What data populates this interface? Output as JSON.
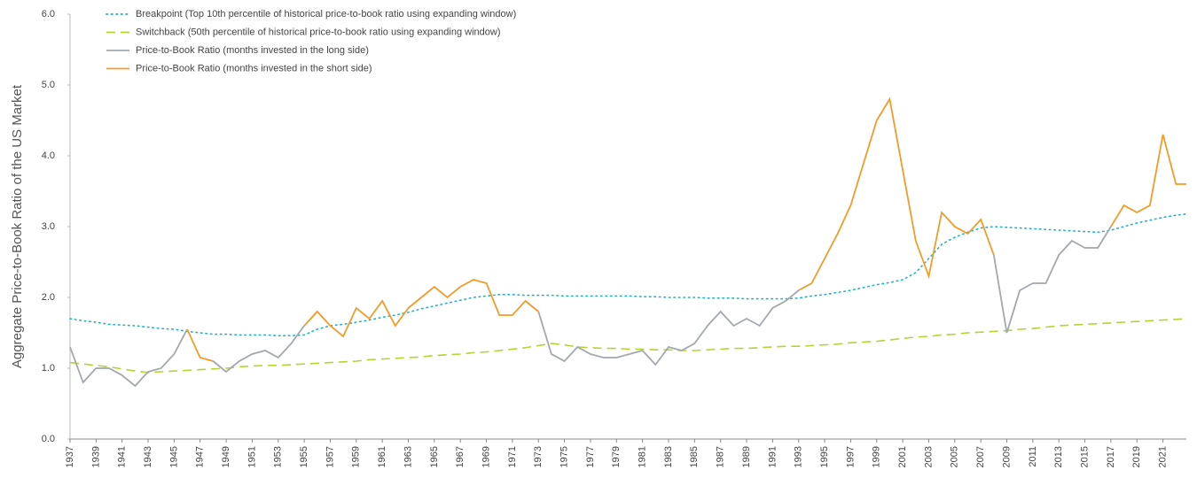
{
  "chart_data": {
    "type": "line",
    "y_label": "Aggregate Price-to-Book Ratio of the US Market",
    "x": [
      1937,
      1938,
      1939,
      1940,
      1941,
      1942,
      1943,
      1944,
      1945,
      1946,
      1947,
      1948,
      1949,
      1950,
      1951,
      1952,
      1953,
      1954,
      1955,
      1956,
      1957,
      1958,
      1959,
      1960,
      1961,
      1962,
      1963,
      1964,
      1965,
      1966,
      1967,
      1968,
      1969,
      1970,
      1971,
      1972,
      1973,
      1974,
      1975,
      1976,
      1977,
      1978,
      1979,
      1980,
      1981,
      1982,
      1983,
      1984,
      1985,
      1986,
      1987,
      1988,
      1989,
      1990,
      1991,
      1992,
      1993,
      1994,
      1995,
      1996,
      1997,
      1998,
      1999,
      2000,
      2001,
      2002,
      2003,
      2004,
      2005,
      2006,
      2007,
      2008,
      2009,
      2010,
      2011,
      2012,
      2013,
      2014,
      2015,
      2016,
      2017,
      2018,
      2019,
      2020,
      2021,
      2022,
      2022.8
    ],
    "series": [
      {
        "name": "Breakpoint (Top 10th percentile of historical price-to-book ratio using expanding window)",
        "color": "#1fb3c4",
        "dash": "dotted",
        "values": [
          1.7,
          1.67,
          1.65,
          1.62,
          1.61,
          1.6,
          1.58,
          1.56,
          1.55,
          1.52,
          1.5,
          1.48,
          1.48,
          1.47,
          1.47,
          1.47,
          1.46,
          1.46,
          1.47,
          1.55,
          1.6,
          1.62,
          1.65,
          1.68,
          1.72,
          1.75,
          1.79,
          1.84,
          1.88,
          1.92,
          1.96,
          2.0,
          2.02,
          2.04,
          2.04,
          2.03,
          2.03,
          2.03,
          2.02,
          2.02,
          2.02,
          2.02,
          2.02,
          2.02,
          2.01,
          2.01,
          2.0,
          2.0,
          2.0,
          1.99,
          1.99,
          1.99,
          1.98,
          1.98,
          1.98,
          1.98,
          1.99,
          2.02,
          2.04,
          2.07,
          2.1,
          2.14,
          2.18,
          2.21,
          2.25,
          2.35,
          2.55,
          2.75,
          2.85,
          2.92,
          2.98,
          3.0,
          2.99,
          2.98,
          2.97,
          2.96,
          2.95,
          2.94,
          2.93,
          2.92,
          2.95,
          3.0,
          3.05,
          3.09,
          3.13,
          3.16,
          3.18
        ]
      },
      {
        "name": "Switchback (50th percentile of historical price-to-book ratio using expanding window)",
        "color": "#b5d334",
        "dash": "dashed",
        "values": [
          1.08,
          1.06,
          1.04,
          1.02,
          0.99,
          0.96,
          0.94,
          0.95,
          0.96,
          0.97,
          0.98,
          0.99,
          1.0,
          1.02,
          1.03,
          1.04,
          1.04,
          1.05,
          1.06,
          1.07,
          1.08,
          1.09,
          1.1,
          1.12,
          1.13,
          1.14,
          1.15,
          1.16,
          1.18,
          1.19,
          1.2,
          1.22,
          1.23,
          1.25,
          1.27,
          1.29,
          1.32,
          1.35,
          1.33,
          1.3,
          1.29,
          1.28,
          1.28,
          1.27,
          1.27,
          1.26,
          1.26,
          1.25,
          1.25,
          1.26,
          1.27,
          1.28,
          1.28,
          1.29,
          1.3,
          1.31,
          1.31,
          1.32,
          1.33,
          1.34,
          1.36,
          1.37,
          1.38,
          1.4,
          1.42,
          1.44,
          1.45,
          1.47,
          1.48,
          1.5,
          1.51,
          1.52,
          1.53,
          1.55,
          1.56,
          1.58,
          1.6,
          1.61,
          1.62,
          1.63,
          1.64,
          1.65,
          1.66,
          1.67,
          1.68,
          1.69,
          1.7
        ]
      },
      {
        "name": "Price-to-Book Ratio (months invested in the long side)",
        "color": "#a2a8ae",
        "dash": "solid",
        "values": [
          1.3,
          0.8,
          1.0,
          1.0,
          0.9,
          0.75,
          0.95,
          1.0,
          1.2,
          1.55,
          null,
          1.1,
          0.95,
          1.1,
          1.2,
          1.25,
          1.15,
          1.35,
          1.6,
          null,
          null,
          null,
          null,
          null,
          null,
          null,
          null,
          null,
          null,
          null,
          null,
          null,
          null,
          null,
          null,
          null,
          1.8,
          1.2,
          1.1,
          1.3,
          1.2,
          1.15,
          1.15,
          1.2,
          1.25,
          1.05,
          1.3,
          1.25,
          1.35,
          1.6,
          1.8,
          1.6,
          1.7,
          1.6,
          1.85,
          1.95,
          2.1,
          null,
          null,
          null,
          null,
          null,
          null,
          null,
          null,
          null,
          null,
          null,
          null,
          null,
          null,
          2.6,
          1.5,
          2.1,
          2.2,
          2.2,
          2.6,
          2.8,
          2.7,
          2.7,
          3.0,
          null,
          null,
          null,
          null,
          null,
          null
        ]
      },
      {
        "name": "Price-to-Book Ratio (months invested in the short side)",
        "color": "#f29b26",
        "dash": "solid",
        "values": [
          null,
          null,
          null,
          null,
          null,
          null,
          null,
          null,
          null,
          1.55,
          1.15,
          1.1,
          null,
          null,
          null,
          null,
          null,
          null,
          1.6,
          1.8,
          1.6,
          1.45,
          1.85,
          1.7,
          1.95,
          1.6,
          1.85,
          2.0,
          2.15,
          2.0,
          2.15,
          2.25,
          2.2,
          1.75,
          1.75,
          1.95,
          1.8,
          null,
          null,
          null,
          null,
          null,
          null,
          null,
          null,
          null,
          null,
          null,
          null,
          null,
          null,
          null,
          null,
          null,
          null,
          null,
          2.1,
          2.2,
          2.55,
          2.9,
          3.3,
          3.9,
          4.5,
          4.8,
          3.8,
          2.8,
          2.3,
          3.2,
          3.0,
          2.9,
          3.1,
          2.6,
          null,
          null,
          null,
          null,
          null,
          null,
          null,
          null,
          3.0,
          3.3,
          3.2,
          3.3,
          4.3,
          3.6,
          3.6
        ]
      }
    ],
    "xlim": [
      1937,
      2022.8
    ],
    "xticks": [
      1937,
      1939,
      1941,
      1943,
      1945,
      1947,
      1949,
      1951,
      1953,
      1955,
      1957,
      1959,
      1961,
      1963,
      1965,
      1967,
      1969,
      1971,
      1973,
      1975,
      1977,
      1979,
      1981,
      1983,
      1985,
      1987,
      1989,
      1991,
      1993,
      1995,
      1997,
      1999,
      2001,
      2003,
      2005,
      2007,
      2009,
      2011,
      2013,
      2015,
      2017,
      2019,
      2021
    ],
    "ylim": [
      0,
      6
    ],
    "yticks": [
      {
        "value": 0,
        "label": "0.0"
      },
      {
        "value": 1,
        "label": "1.0"
      },
      {
        "value": 2,
        "label": "2.0"
      },
      {
        "value": 3,
        "label": "3.0"
      },
      {
        "value": 4,
        "label": "4.0"
      },
      {
        "value": 5,
        "label": "5.0"
      },
      {
        "value": 6,
        "label": "6.0"
      }
    ],
    "grid": false,
    "legend": "top-left"
  }
}
